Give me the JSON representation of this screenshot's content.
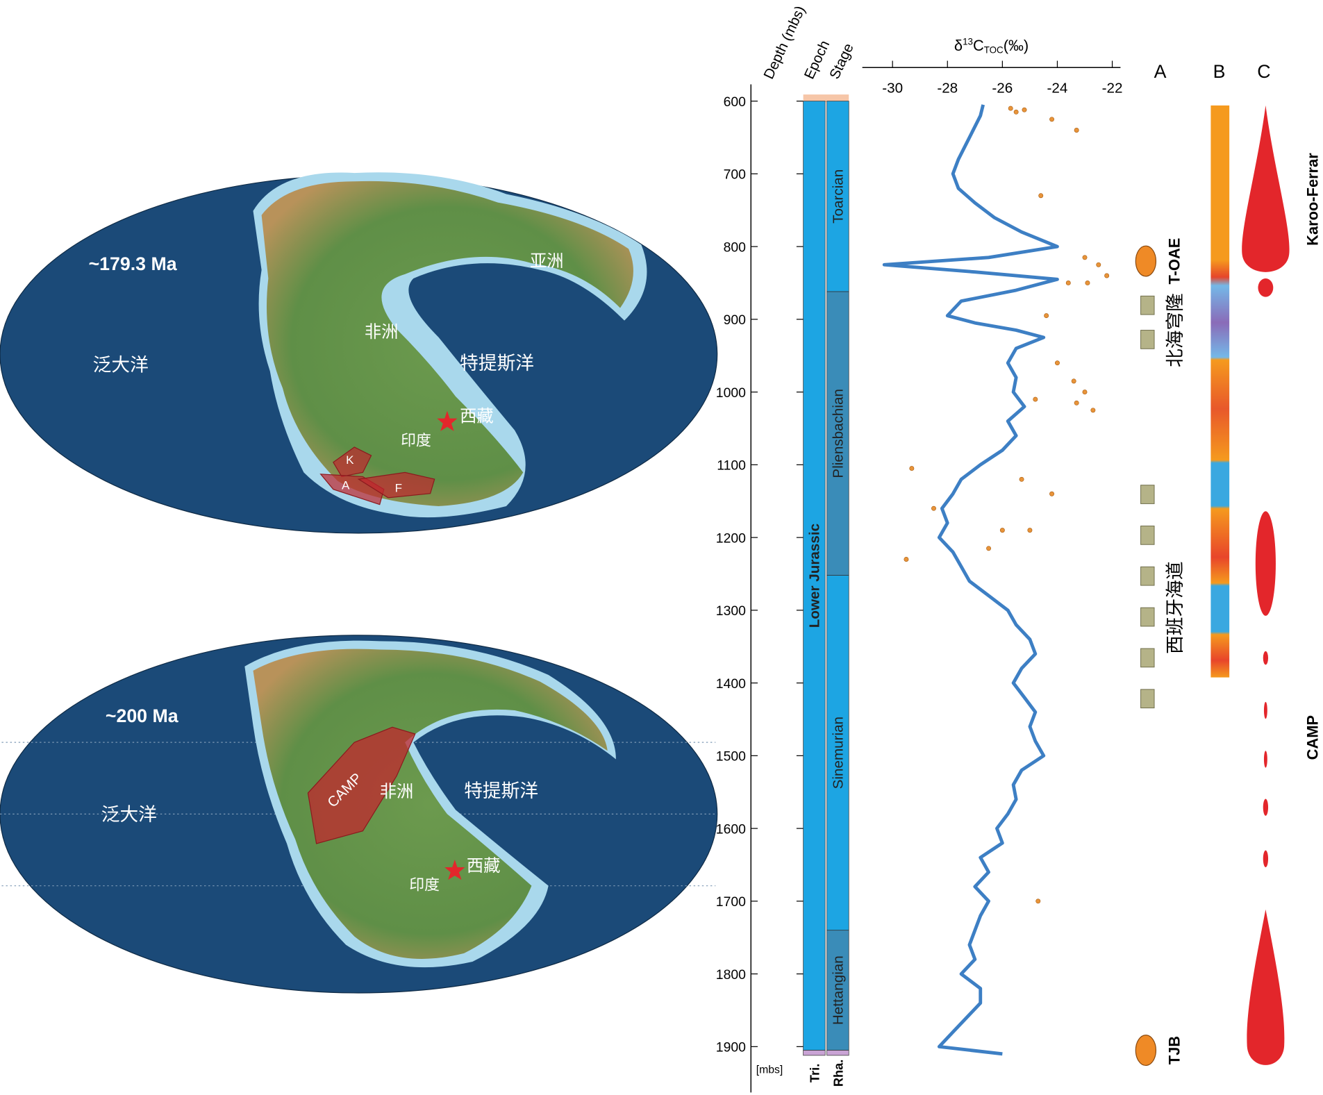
{
  "maps": [
    {
      "age": "~179.3 Ma",
      "panthalassa": "泛大洋",
      "africa": "非洲",
      "tethys": "特提斯洋",
      "tibet": "西藏",
      "india": "印度",
      "asia": "亚洲",
      "k": "K",
      "a": "A",
      "f": "F"
    },
    {
      "age": "~200 Ma",
      "panthalassa": "泛大洋",
      "africa": "非洲",
      "tethys": "特提斯洋",
      "tibet": "西藏",
      "india": "印度",
      "camp": "CAMP"
    }
  ],
  "chart_data": {
    "type": "line",
    "x_label": [
      "δ",
      "13",
      "C",
      "TOC",
      "(‰)"
    ],
    "y_label": "Depth (mbs)",
    "y_unit": "[mbs]",
    "epoch_label": "Epoch",
    "stage_label": "Stage",
    "xlim": [
      -31.1,
      -21.7
    ],
    "xticks": [
      -30,
      -28,
      -26,
      -24,
      -22
    ],
    "ylim": [
      577,
      1963
    ],
    "yticks": [
      600,
      700,
      800,
      900,
      1000,
      1100,
      1200,
      1300,
      1400,
      1500,
      1600,
      1700,
      1800,
      1900
    ],
    "y": [
      605,
      620,
      650,
      680,
      700,
      720,
      740,
      760,
      780,
      800,
      815,
      825,
      835,
      845,
      860,
      875,
      895,
      905,
      915,
      925,
      940,
      960,
      980,
      1000,
      1020,
      1040,
      1060,
      1080,
      1100,
      1120,
      1140,
      1160,
      1180,
      1200,
      1220,
      1240,
      1260,
      1280,
      1300,
      1320,
      1340,
      1360,
      1380,
      1400,
      1420,
      1440,
      1460,
      1480,
      1500,
      1520,
      1540,
      1560,
      1580,
      1600,
      1620,
      1640,
      1660,
      1680,
      1700,
      1720,
      1740,
      1760,
      1780,
      1800,
      1820,
      1840,
      1860,
      1880,
      1900,
      1910
    ],
    "series": [
      {
        "color": "#3d7fc4",
        "values": [
          -26.7,
          -26.8,
          -27.2,
          -27.6,
          -27.8,
          -27.6,
          -27.0,
          -26.3,
          -25.3,
          -24.0,
          -26.5,
          -30.3,
          -27.0,
          -24.0,
          -25.5,
          -27.5,
          -28.0,
          -27.0,
          -25.5,
          -24.5,
          -25.5,
          -25.8,
          -25.5,
          -25.6,
          -25.2,
          -25.8,
          -25.5,
          -26.0,
          -26.8,
          -27.5,
          -27.8,
          -28.2,
          -28.0,
          -28.3,
          -27.8,
          -27.5,
          -27.2,
          -26.5,
          -25.8,
          -25.5,
          -25.0,
          -24.8,
          -25.3,
          -25.6,
          -25.2,
          -24.8,
          -25.0,
          -24.8,
          -24.5,
          -25.3,
          -25.6,
          -25.5,
          -25.8,
          -26.2,
          -26.0,
          -26.8,
          -26.5,
          -27.0,
          -26.5,
          -26.8,
          -27.0,
          -27.2,
          -27.0,
          -27.5,
          -26.8,
          -26.8,
          -27.3,
          -27.8,
          -28.3,
          -26.0
        ]
      }
    ],
    "points": {
      "color": "#e8943a",
      "x": [
        -25.7,
        -25.5,
        -25.2,
        -24.2,
        -23.3,
        -24.6,
        -23.0,
        -22.2,
        -22.5,
        -22.9,
        -23.6,
        -24.4,
        -24.0,
        -23.4,
        -23.0,
        -23.3,
        -22.7,
        -24.8,
        -29.3,
        -25.3,
        -24.2,
        -28.5,
        -26.0,
        -25.0,
        -26.5,
        -29.5,
        -24.7
      ],
      "y": [
        610,
        615,
        612,
        625,
        640,
        730,
        815,
        840,
        825,
        850,
        850,
        895,
        960,
        985,
        1000,
        1015,
        1025,
        1010,
        1105,
        1120,
        1140,
        1160,
        1190,
        1190,
        1215,
        1230,
        1700
      ]
    },
    "epochs": [
      {
        "name": "Lower Jurassic",
        "top": 600,
        "base": 1905,
        "color": "#1da5e3"
      },
      {
        "name": "Tri.",
        "top": 1905,
        "base": 1912,
        "color": "#c9a3d4"
      }
    ],
    "stages": [
      {
        "name": "Toarcian",
        "top": 600,
        "base": 862,
        "color": "#1da5e3"
      },
      {
        "name": "Pliensbachian",
        "top": 862,
        "base": 1252,
        "color": "#3a8cb8"
      },
      {
        "name": "Sinemurian",
        "top": 1252,
        "base": 1740,
        "color": "#1da5e3"
      },
      {
        "name": "Hettangian",
        "top": 1740,
        "base": 1905,
        "color": "#3a8cb8"
      },
      {
        "name": "Rha.",
        "top": 1905,
        "base": 1912,
        "color": "#c9a3d4"
      }
    ],
    "panels": [
      "A",
      "B",
      "C"
    ],
    "events": [
      {
        "label": "T-OAE",
        "depth": 820
      },
      {
        "label": "TJB",
        "depth": 1905
      }
    ],
    "seaways": [
      {
        "label": "北海穹隆",
        "top": 868,
        "base": 962
      },
      {
        "label": "西班牙海道",
        "top": 1128,
        "base": 1465
      }
    ],
    "volcanism": [
      {
        "label": "Karoo-Ferrar",
        "depth": 735
      },
      {
        "label": "CAMP",
        "depth": 1475
      }
    ]
  }
}
